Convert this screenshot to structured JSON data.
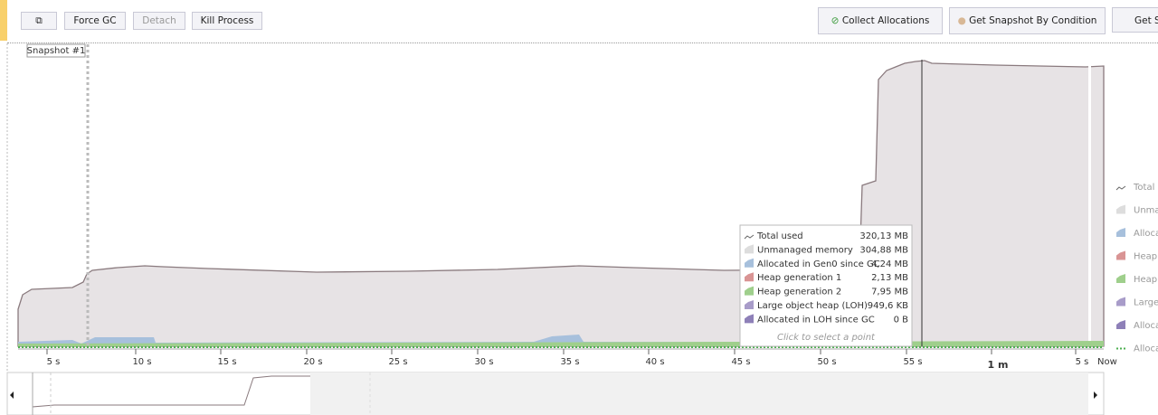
{
  "toolbar": {
    "left_buttons": [
      "Force GC",
      "Detach",
      "Kill Process"
    ],
    "right_buttons": [
      "Collect Allocations",
      "Get Snapshot By Condition",
      "Get S"
    ]
  },
  "snapshot_label": "Snapshot #1",
  "time_axis": {
    "labels": [
      "5 s",
      "10 s",
      "15 s",
      "20 s",
      "25 s",
      "30 s",
      "35 s",
      "40 s",
      "45 s",
      "50 s",
      "55 s",
      "1 m",
      "5 s",
      "Now"
    ]
  },
  "tooltip": {
    "rows": [
      [
        "Total used",
        "320,13 MB"
      ],
      [
        "Unmanaged memory",
        "304,88 MB"
      ],
      [
        "Allocated in Gen0 since GC",
        "4,24 MB"
      ],
      [
        "Heap generation 1",
        "2,13 MB"
      ],
      [
        "Heap generation 2",
        "7,95 MB"
      ],
      [
        "Large object heap (LOH)",
        "949,6 KB"
      ],
      [
        "Allocated in LOH since GC",
        "0 B"
      ]
    ],
    "footer": "Click to select a point"
  },
  "legend": [
    "Total u",
    "Unma",
    "Alloca",
    "Heap",
    "Heap",
    "Large",
    "Alloca",
    "Alloca"
  ]
}
